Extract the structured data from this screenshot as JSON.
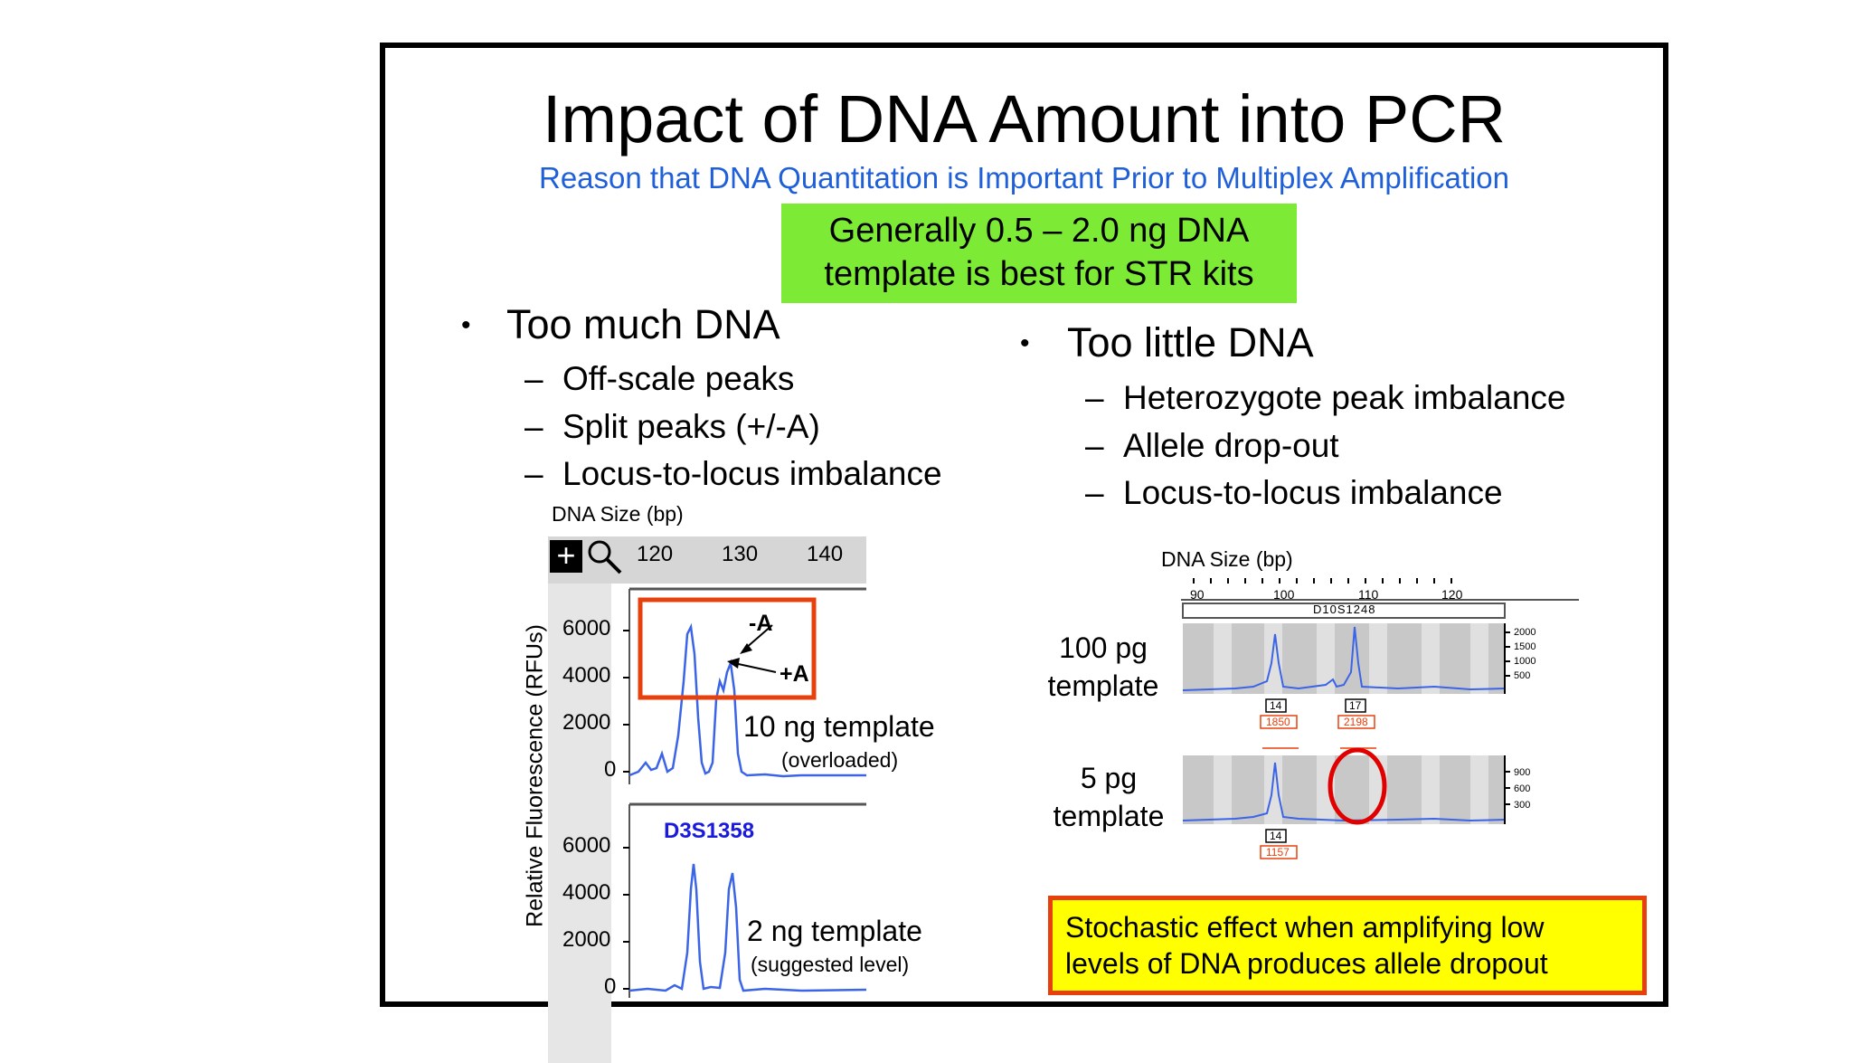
{
  "title": "Impact of DNA Amount into PCR",
  "subtitle": "Reason that DNA Quantitation is Important Prior to Multiplex Amplification",
  "green_box": {
    "line1": "Generally 0.5 – 2.0 ng DNA",
    "line2": "template is best for STR kits"
  },
  "too_much": {
    "heading": "Too much DNA",
    "items": [
      "Off-scale peaks",
      "Split peaks (+/-A)",
      "Locus-to-locus imbalance"
    ]
  },
  "too_little": {
    "heading": "Too little DNA",
    "items": [
      "Heterozygote peak imbalance",
      "Allele drop-out",
      "Locus-to-locus imbalance"
    ]
  },
  "bullet_char": "•",
  "dash_char": "–",
  "left_figure": {
    "xlabel": "DNA Size (bp)",
    "ylabel": "Relative Fluorescence (RFUs)",
    "x_ticks": [
      "120",
      "130",
      "140"
    ],
    "y_ticks": [
      "6000",
      "4000",
      "2000",
      "0"
    ],
    "top_label": "10 ng template",
    "top_sublabel": "(overloaded)",
    "minus_a": "-A",
    "plus_a": "+A",
    "locus": "D3S1358",
    "bottom_label": "2 ng template",
    "bottom_sublabel": "(suggested  level)"
  },
  "right_figure": {
    "xlabel": "DNA Size (bp)",
    "x_ticks": [
      "90",
      "100",
      "110",
      "120"
    ],
    "locus": "D10S1248",
    "top_label1": "100 pg",
    "top_label2": "template",
    "top_y_ticks": [
      "2000",
      "1500",
      "1000",
      "500"
    ],
    "top_alleles": [
      "14",
      "17"
    ],
    "top_heights": [
      "1850",
      "2198"
    ],
    "bottom_label1": "5 pg",
    "bottom_label2": "template",
    "bottom_y_ticks": [
      "900",
      "600",
      "300"
    ],
    "bottom_alleles": [
      "14"
    ],
    "bottom_heights": [
      "1157"
    ]
  },
  "note": {
    "line1": "Stochastic effect when amplifying low",
    "line2": "levels of DNA produces allele dropout"
  },
  "colors": {
    "accent_blue": "#1f5fd8",
    "green": "#7dea35",
    "trace": "#3b64e6",
    "red": "#e8400c",
    "yellow": "#ffff00"
  }
}
